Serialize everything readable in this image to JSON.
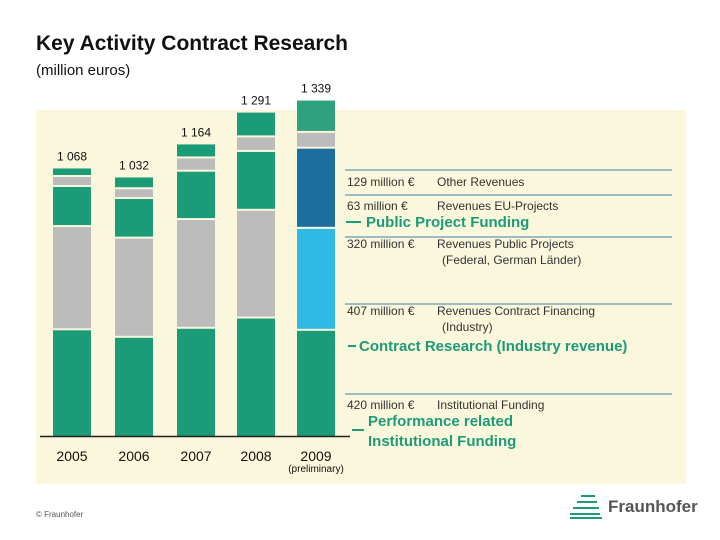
{
  "title": "Key Activity Contract Research",
  "subtitle": "(million euros)",
  "footer": "© Fraunhofer",
  "logo_text": "Fraunhofer",
  "colors": {
    "green": "#1b9b78",
    "grey": "#bcbcbc",
    "other_green": "#2ea17e",
    "eu_blue": "#1c6e9f",
    "public_blue": "#2ebae4",
    "label_green": "#1b9b78",
    "background": "#fbf7dc"
  },
  "chart_data": {
    "type": "bar",
    "stacked": true,
    "categories": [
      "2005",
      "2006",
      "2007",
      "2008",
      "2009"
    ],
    "category_note": {
      "2009": "(preliminary)"
    },
    "totals": [
      1068,
      1032,
      1164,
      1291,
      1339
    ],
    "total_labels": [
      "1 068",
      "1 032",
      "1 164",
      "1 291",
      "1 339"
    ],
    "series": [
      {
        "name": "Institutional Funding",
        "values": [
          422,
          392,
          428,
          469,
          420
        ]
      },
      {
        "name": "Revenues Contract Financing (Industry)",
        "values": [
          412,
          396,
          434,
          430,
          407
        ]
      },
      {
        "name": "Revenues Public Projects",
        "values": [
          160,
          158,
          193,
          235,
          320
        ]
      },
      {
        "name": "Revenues EU-Projects",
        "values": [
          40,
          39,
          53,
          58,
          63
        ]
      },
      {
        "name": "Other Revenues",
        "values": [
          34,
          47,
          56,
          99,
          129
        ]
      }
    ],
    "annotations": [
      {
        "text": "129 million €",
        "desc": "Other Revenues"
      },
      {
        "text": "63 million €",
        "desc": "Revenues EU-Projects"
      },
      {
        "text": "320 million €",
        "desc": "Revenues Public Projects",
        "desc2": "(Federal, German Länder)"
      },
      {
        "text": "407 million €",
        "desc": "Revenues Contract Financing",
        "desc2": "(Industry)"
      },
      {
        "text": "420 million €",
        "desc": "Institutional Funding"
      }
    ],
    "group_labels": [
      {
        "text": "Public Project Funding"
      },
      {
        "text": "Contract Research (Industry revenue)"
      },
      {
        "text": "Performance related",
        "text2": "Institutional Funding"
      }
    ]
  }
}
